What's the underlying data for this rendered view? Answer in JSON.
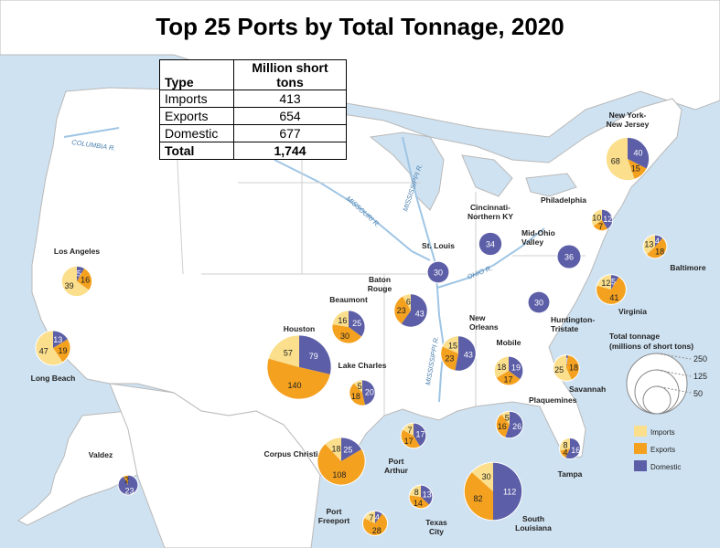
{
  "title": "Top 25 Ports by Total Tonnage, 2020",
  "colors": {
    "imports": "#fbdf8c",
    "exports": "#f4a11f",
    "domestic": "#5c5ea7",
    "water": "#cfe2f1",
    "land": "#ffffff",
    "border": "#b9b9b9"
  },
  "summary_table": {
    "headers": [
      "Type",
      "Million short tons"
    ],
    "rows": [
      {
        "type": "Imports",
        "value": "413"
      },
      {
        "type": "Exports",
        "value": "654"
      },
      {
        "type": "Domestic",
        "value": "677"
      }
    ],
    "total": {
      "type": "Total",
      "value": "1,744"
    }
  },
  "map_labels": {
    "columbia": "COLUMBIA R.",
    "missouri": "MISSOURI R.",
    "mississippi_north": "MISSISSIPPI R.",
    "mississippi_south": "MISSISSIPPI R.",
    "ohio": "OHIO R."
  },
  "legend": {
    "size_title": "Total tonnage (millions of short tons)",
    "size_values": [
      "250",
      "125",
      "50"
    ],
    "categories": [
      "Imports",
      "Exports",
      "Domestic"
    ]
  },
  "chart_data": {
    "type": "pie",
    "title": "Top 25 Ports by Total Tonnage, 2020",
    "series_names": [
      "Imports",
      "Exports",
      "Domestic"
    ],
    "units": "million short tons",
    "ports": [
      {
        "name": "New York-New Jersey",
        "imports": 68,
        "exports": 15,
        "domestic": 40
      },
      {
        "name": "Philadelphia",
        "imports": 10,
        "exports": 7,
        "domestic": 12
      },
      {
        "name": "Baltimore",
        "imports": 13,
        "exports": 18,
        "domestic": 4
      },
      {
        "name": "Mid-Ohio Valley",
        "imports": 0,
        "exports": 0,
        "domestic": 36
      },
      {
        "name": "Cincinnati-Northern KY",
        "imports": 0,
        "exports": 0,
        "domestic": 34
      },
      {
        "name": "Virginia",
        "imports": 12,
        "exports": 41,
        "domestic": 5
      },
      {
        "name": "Huntington-Tristate",
        "imports": 0,
        "exports": 0,
        "domestic": 30
      },
      {
        "name": "St. Louis",
        "imports": 0,
        "exports": 0,
        "domestic": 30
      },
      {
        "name": "Savannah",
        "imports": 25,
        "exports": 18,
        "domestic": 1
      },
      {
        "name": "Baton Rouge",
        "imports": 6,
        "exports": 23,
        "domestic": 43
      },
      {
        "name": "New Orleans",
        "imports": 15,
        "exports": 23,
        "domestic": 43
      },
      {
        "name": "Mobile",
        "imports": 18,
        "exports": 17,
        "domestic": 19
      },
      {
        "name": "Plaquemines",
        "imports": 5,
        "exports": 16,
        "domestic": 26
      },
      {
        "name": "Tampa",
        "imports": 8,
        "exports": 4,
        "domestic": 16
      },
      {
        "name": "South Louisiana",
        "imports": 30,
        "exports": 82,
        "domestic": 112
      },
      {
        "name": "Beaumont",
        "imports": 16,
        "exports": 30,
        "domestic": 25
      },
      {
        "name": "Lake Charles",
        "imports": 5,
        "exports": 18,
        "domestic": 20
      },
      {
        "name": "Port Arthur",
        "imports": 7,
        "exports": 17,
        "domestic": 17
      },
      {
        "name": "Houston",
        "imports": 57,
        "exports": 140,
        "domestic": 79
      },
      {
        "name": "Corpus Christi",
        "imports": 18,
        "exports": 108,
        "domestic": 25
      },
      {
        "name": "Texas City",
        "imports": 8,
        "exports": 14,
        "domestic": 13
      },
      {
        "name": "Port Freeport",
        "imports": 7,
        "exports": 28,
        "domestic": 4
      },
      {
        "name": "Los Angeles",
        "imports": 39,
        "exports": 16,
        "domestic": 5
      },
      {
        "name": "Long Beach",
        "imports": 47,
        "exports": 19,
        "domestic": 13
      },
      {
        "name": "Valdez",
        "imports": 0,
        "exports": 2,
        "domestic": 23
      }
    ]
  }
}
